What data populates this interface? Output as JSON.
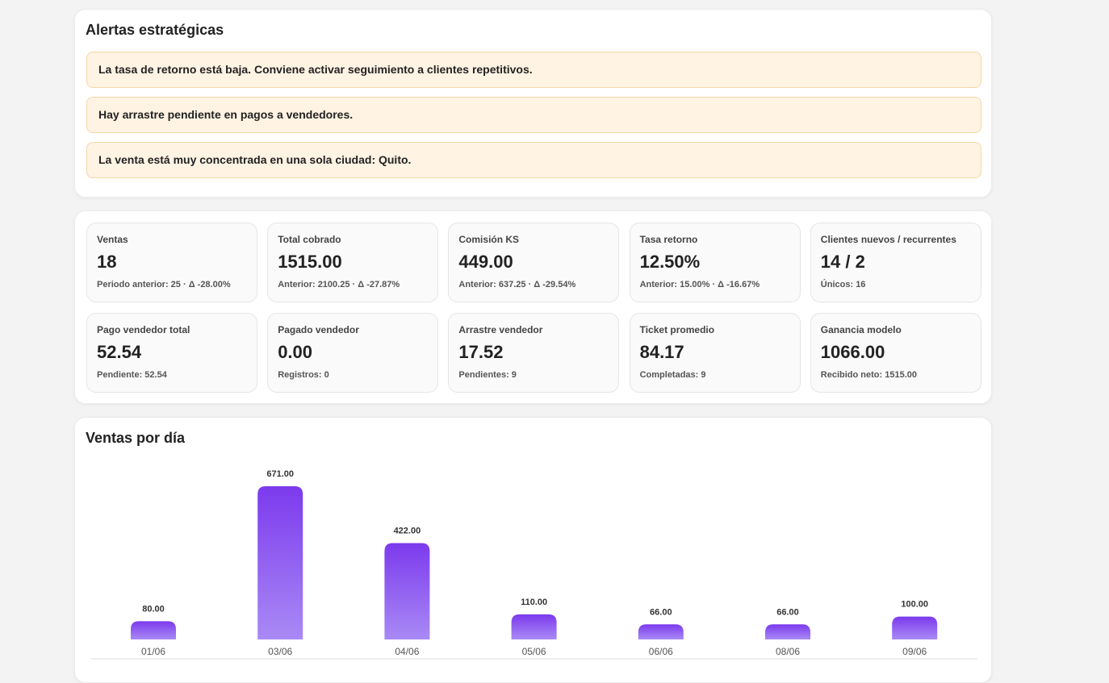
{
  "alerts": {
    "title": "Alertas estratégicas",
    "items": [
      "La tasa de retorno está baja. Conviene activar seguimiento a clientes repetitivos.",
      "Hay arrastre pendiente en pagos a vendedores.",
      "La venta está muy concentrada en una sola ciudad: Quito."
    ]
  },
  "kpis": [
    {
      "label": "Ventas",
      "value": "18",
      "note": "Periodo anterior: 25 · Δ -28.00%"
    },
    {
      "label": "Total cobrado",
      "value": "1515.00",
      "note": "Anterior: 2100.25 · Δ -27.87%"
    },
    {
      "label": "Comisión KS",
      "value": "449.00",
      "note": "Anterior: 637.25 · Δ -29.54%"
    },
    {
      "label": "Tasa retorno",
      "value": "12.50%",
      "note": "Anterior: 15.00% · Δ -16.67%"
    },
    {
      "label": "Clientes nuevos / recurrentes",
      "value": "14 / 2",
      "note": "Únicos: 16"
    },
    {
      "label": "Pago vendedor total",
      "value": "52.54",
      "note": "Pendiente: 52.54"
    },
    {
      "label": "Pagado vendedor",
      "value": "0.00",
      "note": "Registros: 0"
    },
    {
      "label": "Arrastre vendedor",
      "value": "17.52",
      "note": "Pendientes: 9"
    },
    {
      "label": "Ticket promedio",
      "value": "84.17",
      "note": "Completadas: 9"
    },
    {
      "label": "Ganancia modelo",
      "value": "1066.00",
      "note": "Recibido neto: 1515.00"
    }
  ],
  "chart_data": {
    "type": "bar",
    "title": "Ventas por día",
    "categories": [
      "01/06",
      "03/06",
      "04/06",
      "05/06",
      "06/06",
      "08/06",
      "09/06"
    ],
    "values": [
      80,
      671,
      422,
      110,
      66,
      66,
      100
    ],
    "value_labels": [
      "80.00",
      "671.00",
      "422.00",
      "110.00",
      "66.00",
      "66.00",
      "100.00"
    ],
    "color": "#7c3aed"
  }
}
